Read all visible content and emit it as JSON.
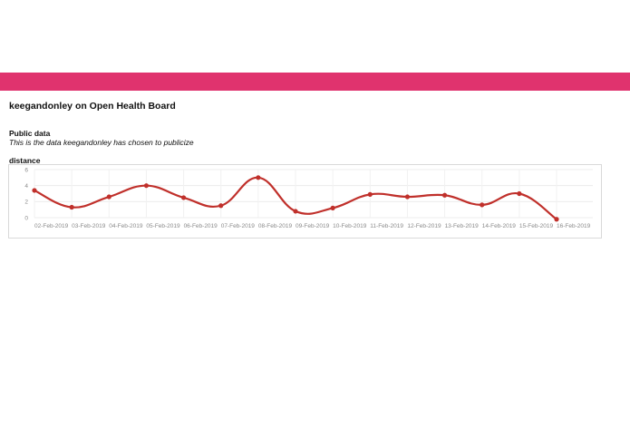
{
  "header": {
    "bar_color": "#e0336e"
  },
  "page": {
    "title": "keegandonley on Open Health Board"
  },
  "public_section": {
    "heading": "Public data",
    "description": "This is the data keegandonley has chosen to publicize"
  },
  "metric": {
    "label": "distance"
  },
  "chart_data": {
    "type": "line",
    "categories": [
      "02-Feb-2019",
      "03-Feb-2019",
      "04-Feb-2019",
      "05-Feb-2019",
      "06-Feb-2019",
      "07-Feb-2019",
      "08-Feb-2019",
      "09-Feb-2019",
      "10-Feb-2019",
      "11-Feb-2019",
      "12-Feb-2019",
      "13-Feb-2019",
      "14-Feb-2019",
      "15-Feb-2019",
      "16-Feb-2019"
    ],
    "series": [
      {
        "values": [
          3.4,
          1.3,
          2.6,
          4.0,
          2.5,
          1.5,
          5.0,
          0.8,
          1.2,
          2.9,
          2.6,
          2.8,
          1.6,
          3.0,
          -0.2
        ],
        "color": "#c0302b"
      }
    ],
    "yticks": [
      0,
      2,
      4,
      6
    ],
    "ylim": [
      0,
      6
    ],
    "grid": true,
    "legend": false
  }
}
